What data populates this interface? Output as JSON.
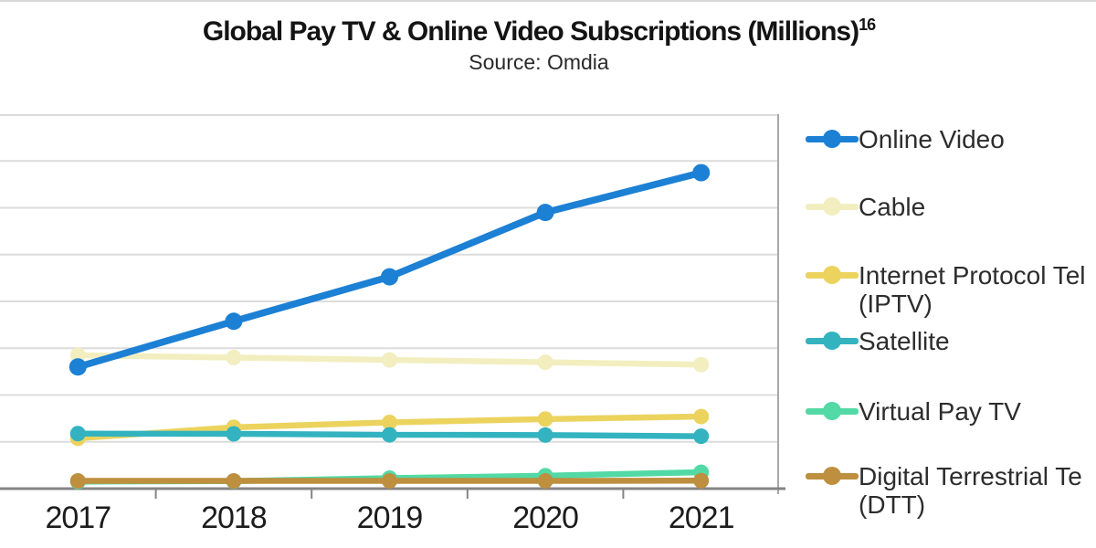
{
  "header": {
    "title": "Global Pay TV & Online Video Subscriptions (Millions)",
    "title_superscript": "16",
    "subtitle": "Source: Omdia"
  },
  "chart_data": {
    "type": "line",
    "x_labels": [
      "2017",
      "2018",
      "2019",
      "2020",
      "2021"
    ],
    "ylabel": "",
    "xlabel": "",
    "ylim": [
      0,
      1600
    ],
    "gridline_interval": 200,
    "grid": true,
    "y_axis_labels_visible": false,
    "legend_position": "right",
    "values_are_estimates_from_gridlines": true,
    "series": [
      {
        "name": "Online Video",
        "color": "#1c80d4",
        "values": [
          520,
          715,
          905,
          1180,
          1350
        ]
      },
      {
        "name": "Cable",
        "color": "#f2eebf",
        "values": [
          570,
          560,
          550,
          540,
          530
        ]
      },
      {
        "name": "Internet Protocol Tel (IPTV)",
        "color": "#ebd35e",
        "values": [
          215,
          262,
          283,
          297,
          308
        ]
      },
      {
        "name": "Satellite",
        "color": "#33b3bf",
        "values": [
          235,
          234,
          230,
          229,
          224
        ]
      },
      {
        "name": "Virtual Pay TV",
        "color": "#52d9a5",
        "values": [
          30,
          32,
          45,
          55,
          70
        ]
      },
      {
        "name": "Digital Terrestrial Te (DTT)",
        "color": "#be8f3e",
        "values": [
          33,
          33,
          33,
          33,
          34
        ]
      }
    ],
    "draw_order": [
      1,
      2,
      3,
      4,
      5,
      0
    ]
  },
  "legend": {
    "items": [
      {
        "label_lines": [
          "Online Video"
        ],
        "color": "#1c80d4"
      },
      {
        "label_lines": [
          "Cable"
        ],
        "color": "#f2eebf"
      },
      {
        "label_lines": [
          "Internet Protocol Tel",
          "(IPTV)"
        ],
        "color": "#ebd35e"
      },
      {
        "label_lines": [
          "Satellite"
        ],
        "color": "#33b3bf"
      },
      {
        "label_lines": [
          "Virtual Pay TV"
        ],
        "color": "#52d9a5"
      },
      {
        "label_lines": [
          "Digital Terrestrial Te",
          "(DTT)"
        ],
        "color": "#be8f3e"
      }
    ]
  },
  "style_colors": {
    "gridline": "#dcdcdc",
    "plot_top_border": "#dcdcdc",
    "plot_right_border": "#a8a8a8",
    "axis_line": "#848484",
    "text": "#1c1c1c"
  }
}
